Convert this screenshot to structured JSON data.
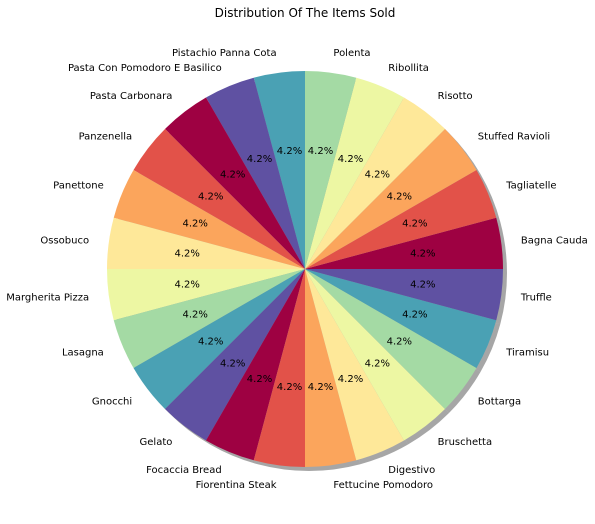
{
  "chart_data": {
    "type": "pie",
    "title": "Distribution Of The Items Sold",
    "start_angle_deg": 90,
    "direction": "counterclockwise",
    "shadow": true,
    "slices": [
      {
        "label": "Pistachio Panna Cota",
        "value": 4.2,
        "pct_label": "4.2%",
        "color": "#4aa1b4"
      },
      {
        "label": "Pasta Con Pomodoro E Basilico",
        "value": 4.2,
        "pct_label": "4.2%",
        "color": "#5f51a2"
      },
      {
        "label": "Pasta Carbonara",
        "value": 4.2,
        "pct_label": "4.2%",
        "color": "#9e0142"
      },
      {
        "label": "Panzenella",
        "value": 4.2,
        "pct_label": "4.2%",
        "color": "#e25249"
      },
      {
        "label": "Panettone",
        "value": 4.2,
        "pct_label": "4.2%",
        "color": "#fba55c"
      },
      {
        "label": "Ossobuco",
        "value": 4.2,
        "pct_label": "4.2%",
        "color": "#fee899"
      },
      {
        "label": "Margherita Pizza",
        "value": 4.2,
        "pct_label": "4.2%",
        "color": "#edf7a3"
      },
      {
        "label": "Lasagna",
        "value": 4.2,
        "pct_label": "4.2%",
        "color": "#a4daa4"
      },
      {
        "label": "Gnocchi",
        "value": 4.2,
        "pct_label": "4.2%",
        "color": "#4aa1b4"
      },
      {
        "label": "Gelato",
        "value": 4.2,
        "pct_label": "4.2%",
        "color": "#5f51a2"
      },
      {
        "label": "Focaccia Bread",
        "value": 4.2,
        "pct_label": "4.2%",
        "color": "#9e0142"
      },
      {
        "label": "Fiorentina Steak",
        "value": 4.2,
        "pct_label": "4.2%",
        "color": "#e25249"
      },
      {
        "label": "Fettucine Pomodoro",
        "value": 4.2,
        "pct_label": "4.2%",
        "color": "#fba55c"
      },
      {
        "label": "Digestivo",
        "value": 4.2,
        "pct_label": "4.2%",
        "color": "#fee899"
      },
      {
        "label": "Bruschetta",
        "value": 4.2,
        "pct_label": "4.2%",
        "color": "#edf7a3"
      },
      {
        "label": "Bottarga",
        "value": 4.2,
        "pct_label": "4.2%",
        "color": "#a4daa4"
      },
      {
        "label": "Tiramisu",
        "value": 4.2,
        "pct_label": "4.2%",
        "color": "#4aa1b4"
      },
      {
        "label": "Truffle",
        "value": 4.2,
        "pct_label": "4.2%",
        "color": "#5f51a2"
      },
      {
        "label": "Bagna Cauda",
        "value": 4.2,
        "pct_label": "4.2%",
        "color": "#9e0142"
      },
      {
        "label": "Tagliatelle",
        "value": 4.2,
        "pct_label": "4.2%",
        "color": "#e25249"
      },
      {
        "label": "Stuffed Ravioli",
        "value": 4.2,
        "pct_label": "4.2%",
        "color": "#fba55c"
      },
      {
        "label": "Risotto",
        "value": 4.2,
        "pct_label": "4.2%",
        "color": "#fee899"
      },
      {
        "label": "Ribollita",
        "value": 4.2,
        "pct_label": "4.2%",
        "color": "#edf7a3"
      },
      {
        "label": "Polenta",
        "value": 4.2,
        "pct_label": "4.2%",
        "color": "#a4daa4"
      }
    ]
  }
}
